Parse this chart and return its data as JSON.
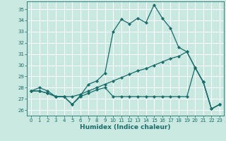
{
  "xlabel": "Humidex (Indice chaleur)",
  "xlim": [
    -0.5,
    23.5
  ],
  "ylim": [
    25.5,
    35.7
  ],
  "xticks": [
    0,
    1,
    2,
    3,
    4,
    5,
    6,
    7,
    8,
    9,
    10,
    11,
    12,
    13,
    14,
    15,
    16,
    17,
    18,
    19,
    20,
    21,
    22,
    23
  ],
  "yticks": [
    26,
    27,
    28,
    29,
    30,
    31,
    32,
    33,
    34,
    35
  ],
  "bg_color": "#c8e8e0",
  "grid_color": "#ffffff",
  "line_color": "#1a6b6b",
  "lines": [
    [
      0,
      27.7,
      1,
      28.0,
      2,
      27.7,
      3,
      27.2,
      4,
      27.2,
      5,
      26.5,
      6,
      27.3,
      7,
      28.3,
      8,
      28.6,
      9,
      29.3,
      10,
      33.0,
      11,
      34.1,
      12,
      33.7,
      13,
      34.2,
      14,
      33.8,
      15,
      35.4,
      16,
      34.2,
      17,
      33.3,
      18,
      31.6,
      19,
      31.2,
      20,
      29.8,
      21,
      28.5,
      22,
      26.1,
      23,
      26.5
    ],
    [
      0,
      27.7,
      1,
      27.7,
      2,
      27.5,
      3,
      27.2,
      4,
      27.2,
      5,
      27.2,
      6,
      27.4,
      7,
      27.7,
      8,
      28.0,
      9,
      28.3,
      10,
      28.6,
      11,
      28.9,
      12,
      29.2,
      13,
      29.5,
      14,
      29.7,
      15,
      30.0,
      16,
      30.3,
      17,
      30.6,
      18,
      30.8,
      19,
      31.2,
      20,
      29.8,
      21,
      28.5,
      22,
      26.1,
      23,
      26.5
    ],
    [
      0,
      27.7,
      1,
      27.7,
      2,
      27.5,
      3,
      27.2,
      4,
      27.2,
      5,
      26.5,
      6,
      27.2,
      7,
      27.5,
      8,
      27.8,
      9,
      28.0,
      10,
      27.2,
      11,
      27.2,
      12,
      27.2,
      13,
      27.2,
      14,
      27.2,
      15,
      27.2,
      16,
      27.2,
      17,
      27.2,
      18,
      27.2,
      19,
      27.2,
      20,
      29.8,
      21,
      28.5,
      22,
      26.1,
      23,
      26.5
    ]
  ],
  "marker": "D",
  "markersize": 2.2,
  "linewidth": 0.9,
  "tick_fontsize": 5.0,
  "xlabel_fontsize": 6.5
}
